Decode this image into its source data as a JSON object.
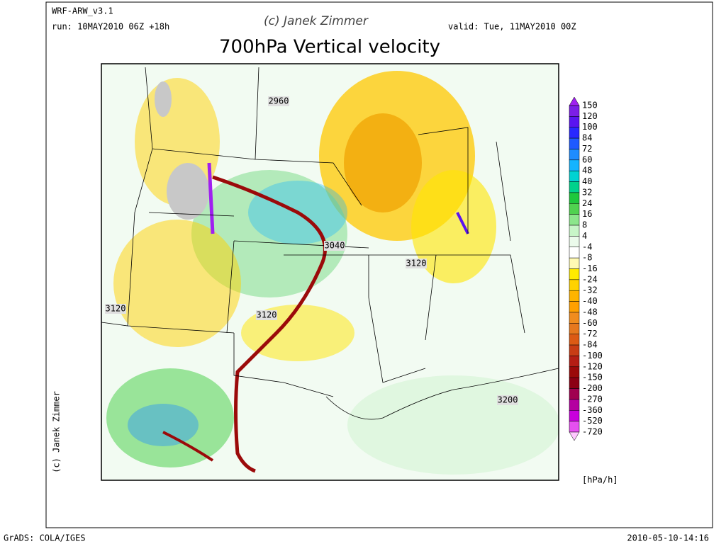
{
  "header": {
    "model": "WRF-ARW_v3.1",
    "run": "run: 10MAY2010 06Z +18h",
    "copyright": "(c) Janek Zimmer",
    "valid": "valid: Tue, 11MAY2010 00Z"
  },
  "title": "700hPa Vertical velocity",
  "side_credit": "(c) Janek Zimmer",
  "contour_labels": [
    "2960",
    "3040",
    "3120",
    "3120",
    "3120",
    "3200"
  ],
  "legend": {
    "levels": [
      150,
      120,
      100,
      84,
      72,
      60,
      48,
      40,
      32,
      24,
      16,
      8,
      4,
      -4,
      -8,
      -16,
      -24,
      -32,
      -40,
      -48,
      -60,
      -72,
      -84,
      -100,
      -120,
      -150,
      -200,
      -270,
      -360,
      -520,
      -720
    ],
    "colors": [
      "#a020f0",
      "#7c1ee6",
      "#5a14f0",
      "#2828ff",
      "#1e5aff",
      "#1e8cff",
      "#14b4ff",
      "#00d2d2",
      "#00d28c",
      "#1ec83c",
      "#50d250",
      "#8ce68c",
      "#c8f5c8",
      "#ebfaeb",
      "#ffffff",
      "#fffab4",
      "#ffeb00",
      "#ffd200",
      "#ffb400",
      "#ffa000",
      "#f08c1e",
      "#e6781e",
      "#dc5a14",
      "#c83c14",
      "#b41e14",
      "#9b0a0a",
      "#8c0014",
      "#a00050",
      "#b400a0",
      "#c800dc",
      "#e650f0",
      "#ffc8ff"
    ],
    "unit": "[hPa/h]"
  },
  "footer": {
    "left": "GrADS: COLA/IGES",
    "right": "2010-05-10-14:16"
  }
}
